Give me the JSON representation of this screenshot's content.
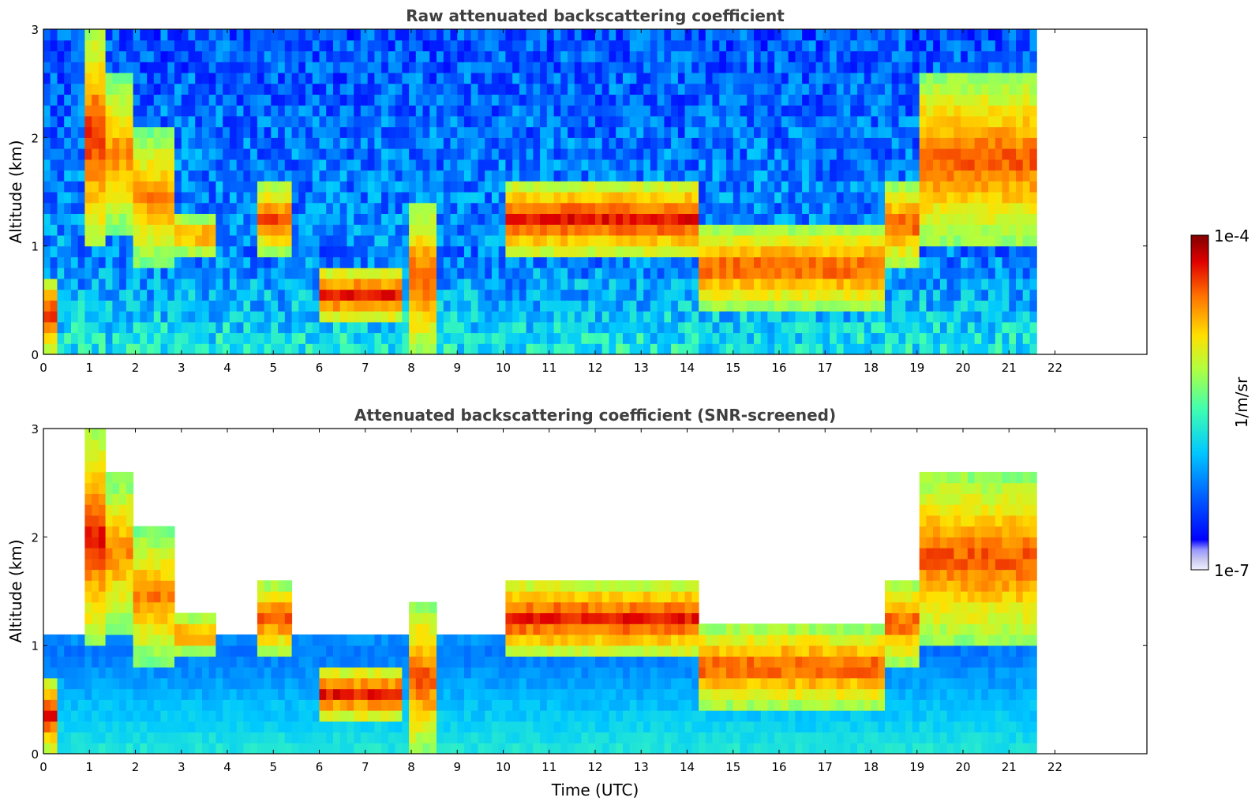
{
  "chart_data": [
    {
      "type": "heatmap",
      "title": "Raw attenuated backscattering coefficient",
      "xlabel": "",
      "ylabel": "Altitude (km)",
      "xlim": [
        0,
        24
      ],
      "ylim": [
        0,
        3
      ],
      "x_ticks": [
        "0",
        "1",
        "2",
        "3",
        "4",
        "5",
        "6",
        "7",
        "8",
        "9",
        "10",
        "11",
        "12",
        "13",
        "14",
        "15",
        "16",
        "17",
        "18",
        "19",
        "20",
        "21",
        "22"
      ],
      "y_ticks": [
        "0",
        "1",
        "2",
        "3"
      ],
      "data_end_time": 21.6,
      "screened": false,
      "features": [
        {
          "t0": 0.0,
          "t1": 0.25,
          "layer_base_km": 0.0,
          "layer_top_km": 0.7,
          "level": 0.9
        },
        {
          "t0": 0.9,
          "t1": 1.3,
          "layer_base_km": 1.0,
          "layer_top_km": 3.0,
          "level": 0.9
        },
        {
          "t0": 1.3,
          "t1": 2.0,
          "layer_base_km": 1.1,
          "layer_top_km": 2.6,
          "level": 0.8
        },
        {
          "t0": 2.0,
          "t1": 2.8,
          "layer_base_km": 0.8,
          "layer_top_km": 2.1,
          "level": 0.8
        },
        {
          "t0": 2.8,
          "t1": 3.8,
          "layer_base_km": 0.9,
          "layer_top_km": 1.3,
          "level": 0.8
        },
        {
          "t0": 4.6,
          "t1": 5.4,
          "layer_base_km": 0.9,
          "layer_top_km": 1.6,
          "level": 0.85
        },
        {
          "t0": 6.0,
          "t1": 7.8,
          "layer_base_km": 0.3,
          "layer_top_km": 0.8,
          "level": 0.9
        },
        {
          "t0": 7.9,
          "t1": 8.6,
          "layer_base_km": 0.0,
          "layer_top_km": 1.4,
          "level": 0.85
        },
        {
          "t0": 10.0,
          "t1": 14.2,
          "layer_base_km": 0.9,
          "layer_top_km": 1.6,
          "level": 0.9
        },
        {
          "t0": 14.3,
          "t1": 18.3,
          "layer_base_km": 0.4,
          "layer_top_km": 1.2,
          "level": 0.85
        },
        {
          "t0": 18.3,
          "t1": 19.0,
          "layer_base_km": 0.8,
          "layer_top_km": 1.6,
          "level": 0.85
        },
        {
          "t0": 19.0,
          "t1": 21.6,
          "layer_base_km": 1.0,
          "layer_top_km": 2.6,
          "level": 0.85
        }
      ]
    },
    {
      "type": "heatmap",
      "title": "Attenuated backscattering coefficient (SNR-screened)",
      "xlabel": "Time (UTC)",
      "ylabel": "Altitude (km)",
      "xlim": [
        0,
        24
      ],
      "ylim": [
        0,
        3
      ],
      "x_ticks": [
        "0",
        "1",
        "2",
        "3",
        "4",
        "5",
        "6",
        "7",
        "8",
        "9",
        "10",
        "11",
        "12",
        "13",
        "14",
        "15",
        "16",
        "17",
        "18",
        "19",
        "20",
        "21",
        "22"
      ],
      "y_ticks": [
        "0",
        "1",
        "2",
        "3"
      ],
      "data_end_time": 21.6,
      "screened": true,
      "features": [
        {
          "t0": 0.0,
          "t1": 0.25,
          "layer_base_km": 0.0,
          "layer_top_km": 0.7,
          "level": 0.9
        },
        {
          "t0": 0.9,
          "t1": 1.3,
          "layer_base_km": 1.0,
          "layer_top_km": 3.0,
          "level": 0.9
        },
        {
          "t0": 1.3,
          "t1": 2.0,
          "layer_base_km": 1.1,
          "layer_top_km": 2.6,
          "level": 0.8
        },
        {
          "t0": 2.0,
          "t1": 2.8,
          "layer_base_km": 0.8,
          "layer_top_km": 2.1,
          "level": 0.8
        },
        {
          "t0": 2.8,
          "t1": 3.8,
          "layer_base_km": 0.9,
          "layer_top_km": 1.3,
          "level": 0.8
        },
        {
          "t0": 4.6,
          "t1": 5.4,
          "layer_base_km": 0.9,
          "layer_top_km": 1.6,
          "level": 0.85
        },
        {
          "t0": 6.0,
          "t1": 7.8,
          "layer_base_km": 0.3,
          "layer_top_km": 0.8,
          "level": 0.9
        },
        {
          "t0": 7.9,
          "t1": 8.6,
          "layer_base_km": 0.0,
          "layer_top_km": 1.4,
          "level": 0.85
        },
        {
          "t0": 10.0,
          "t1": 14.2,
          "layer_base_km": 0.9,
          "layer_top_km": 1.6,
          "level": 0.9
        },
        {
          "t0": 14.3,
          "t1": 18.3,
          "layer_base_km": 0.4,
          "layer_top_km": 1.2,
          "level": 0.85
        },
        {
          "t0": 18.3,
          "t1": 19.0,
          "layer_base_km": 0.8,
          "layer_top_km": 1.6,
          "level": 0.85
        },
        {
          "t0": 19.0,
          "t1": 21.6,
          "layer_base_km": 1.0,
          "layer_top_km": 2.6,
          "level": 0.85
        }
      ]
    }
  ],
  "colorbar": {
    "label": "1/m/sr",
    "max_label": "1e-4",
    "min_label": "1e-7",
    "range": [
      1e-07,
      0.0001
    ],
    "scale": "log",
    "colormap": "jet"
  }
}
